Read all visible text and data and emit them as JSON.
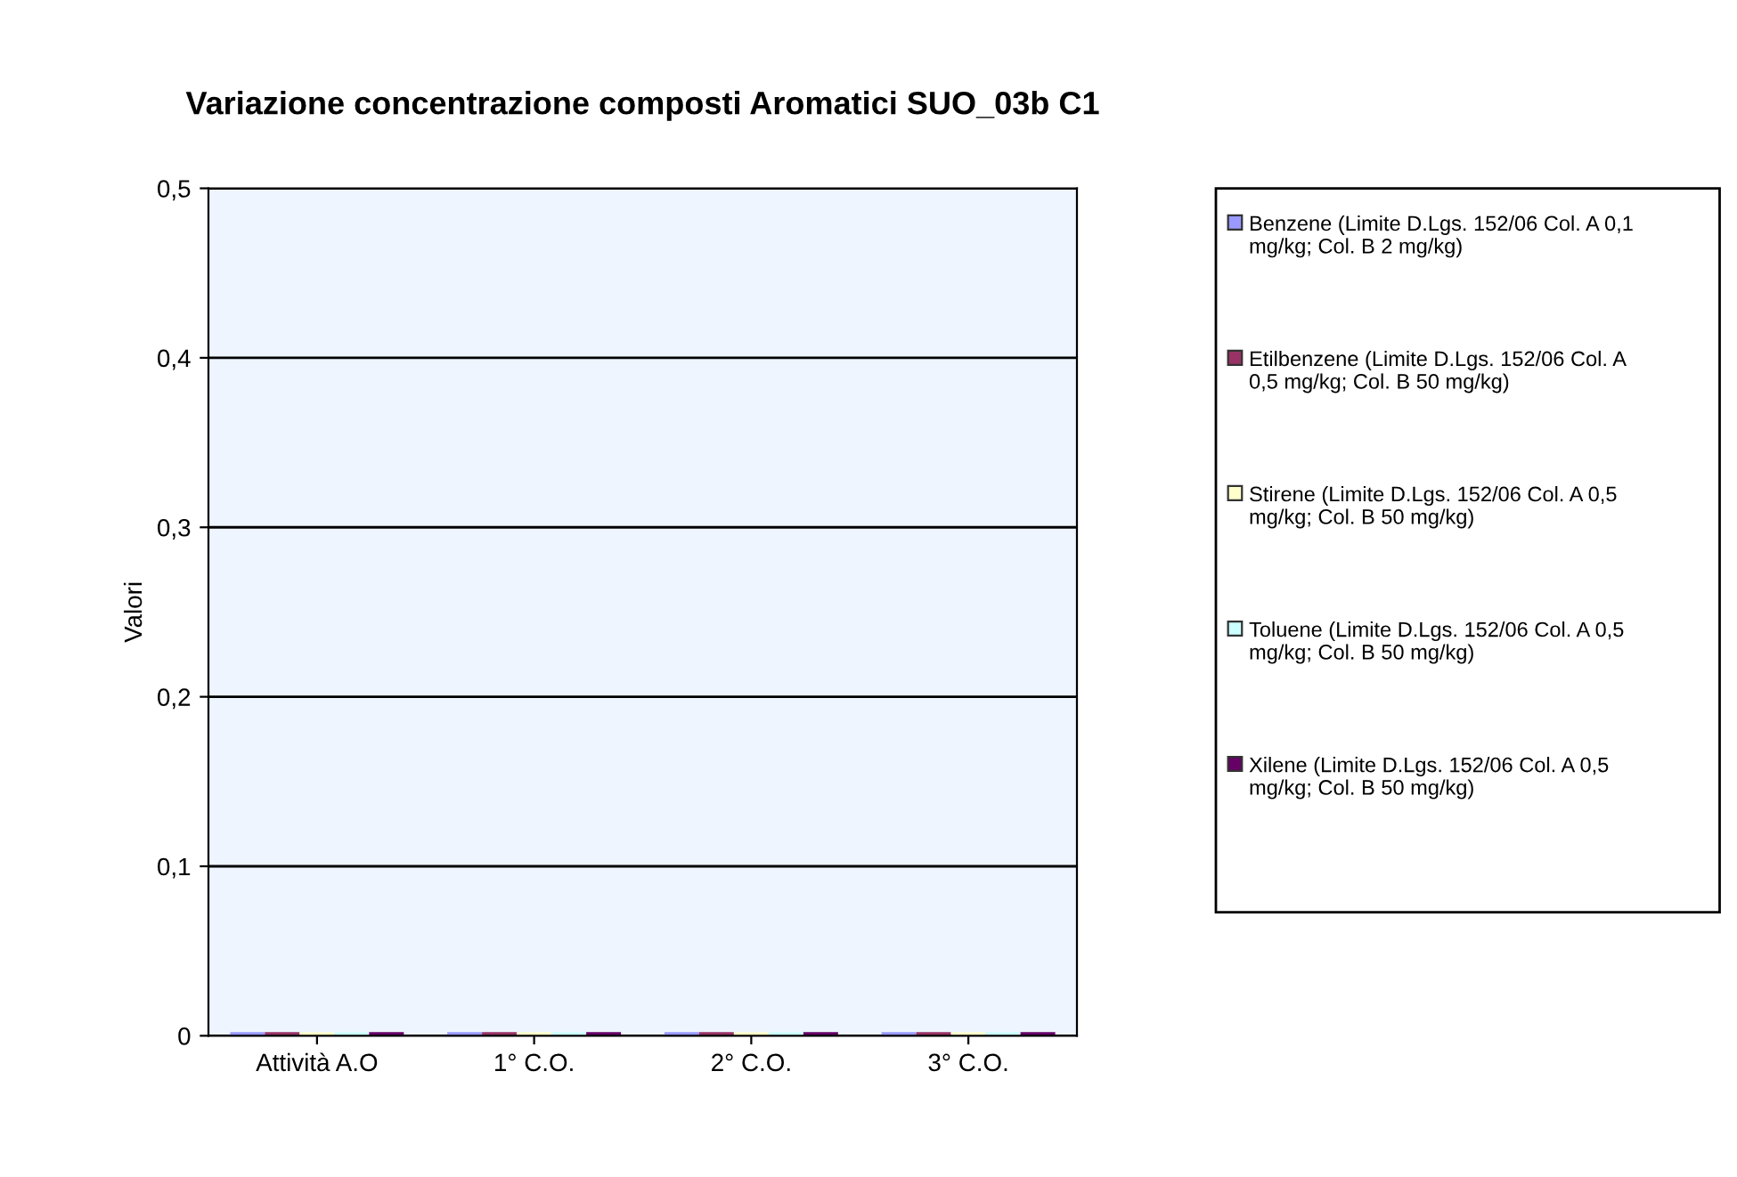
{
  "chart_data": {
    "type": "bar",
    "title": "Variazione concentrazione composti Aromatici SUO_03b C1",
    "ylabel": "Valori",
    "categories": [
      "Attività A.O",
      "1° C.O.",
      "2° C.O.",
      "3° C.O."
    ],
    "series": [
      {
        "name": "Benzene (Limite D.Lgs. 152/06 Col. A 0,1 mg/kg; Col. B 2 mg/kg)",
        "color": "#9999ff",
        "values": [
          0,
          0,
          0,
          0
        ]
      },
      {
        "name": "Etilbenzene (Limite D.Lgs. 152/06 Col. A 0,5 mg/kg; Col. B 50 mg/kg)",
        "color": "#993366",
        "values": [
          0,
          0,
          0,
          0
        ]
      },
      {
        "name": "Stirene (Limite D.Lgs. 152/06 Col. A 0,5 mg/kg; Col. B 50 mg/kg)",
        "color": "#ffffcc",
        "values": [
          0,
          0,
          0,
          0
        ]
      },
      {
        "name": "Toluene (Limite D.Lgs. 152/06 Col. A 0,5 mg/kg; Col. B 50 mg/kg)",
        "color": "#ccffff",
        "values": [
          0,
          0,
          0,
          0
        ]
      },
      {
        "name": "Xilene (Limite D.Lgs. 152/06 Col. A 0,5 mg/kg; Col. B 50 mg/kg)",
        "color": "#660066",
        "values": [
          0,
          0,
          0,
          0
        ]
      }
    ],
    "ylim": [
      0,
      0.5
    ],
    "yticks": [
      {
        "value": 0,
        "label": "0"
      },
      {
        "value": 0.1,
        "label": "0,1"
      },
      {
        "value": 0.2,
        "label": "0,2"
      },
      {
        "value": 0.3,
        "label": "0,3"
      },
      {
        "value": 0.4,
        "label": "0,4"
      },
      {
        "value": 0.5,
        "label": "0,5"
      }
    ],
    "grid": "y",
    "legend": "right"
  }
}
